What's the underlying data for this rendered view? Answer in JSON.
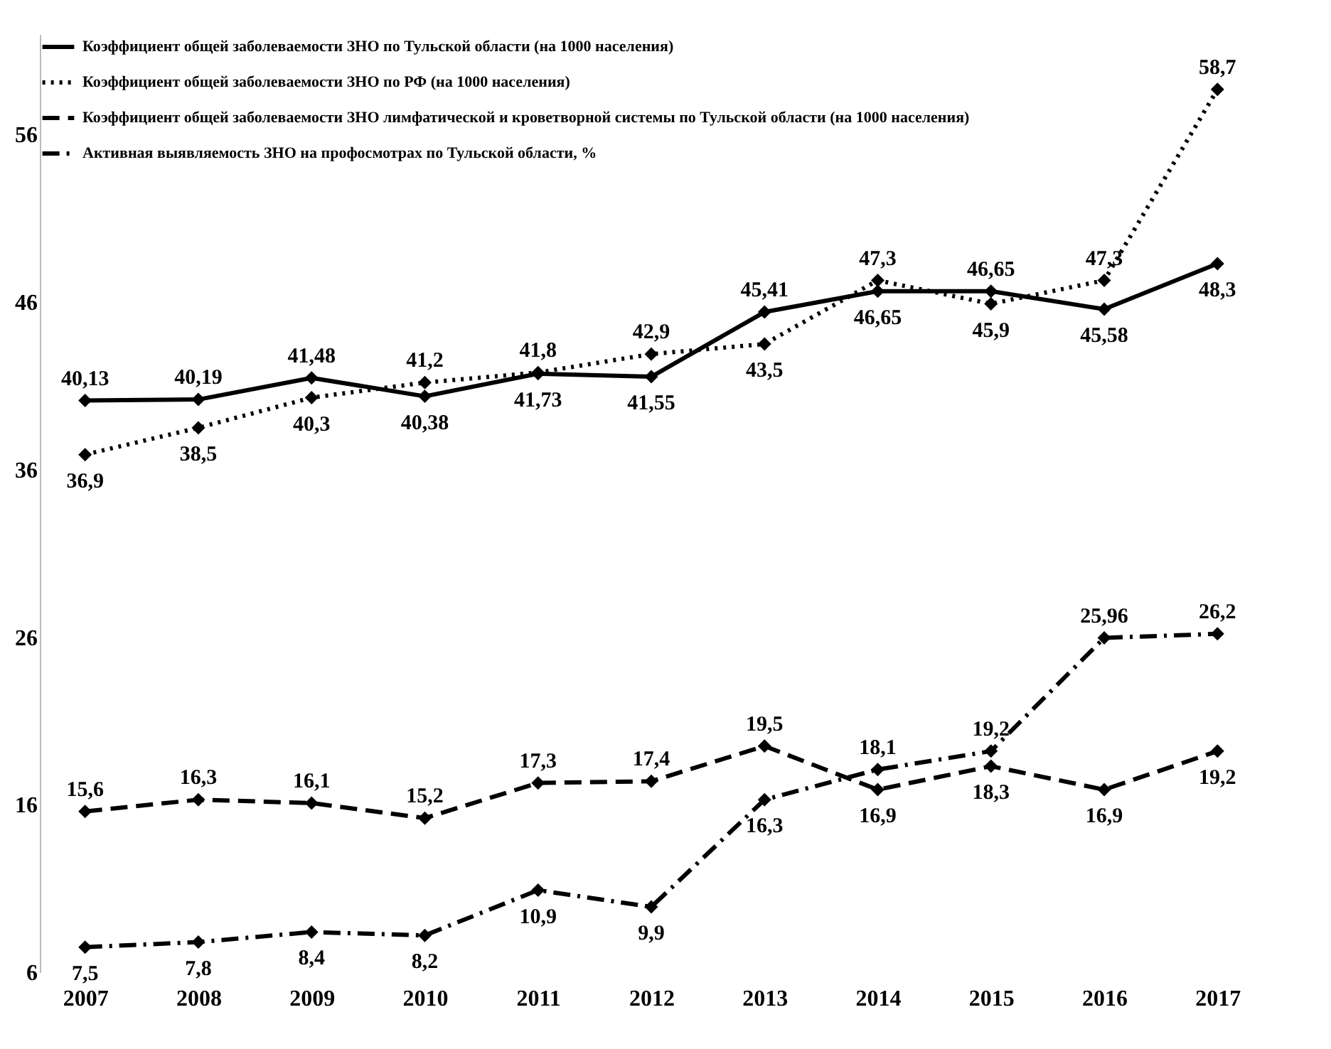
{
  "chart_data": {
    "type": "line",
    "categories": [
      "2007",
      "2008",
      "2009",
      "2010",
      "2011",
      "2012",
      "2013",
      "2014",
      "2015",
      "2016",
      "2017"
    ],
    "series": [
      {
        "name": "Коэффициент общей заболеваемости ЗНО по Тульской области (на 1000 населения)",
        "color": "#000000",
        "line_style": "solid",
        "values": [
          40.13,
          40.19,
          41.48,
          40.38,
          41.73,
          41.55,
          45.41,
          46.65,
          46.65,
          45.58,
          48.3
        ],
        "value_labels": [
          "40,13",
          "40,19",
          "41,48",
          "40,38",
          "41,73",
          "41,55",
          "45,41",
          "46,65",
          "46,65",
          "45,58",
          "48,3"
        ]
      },
      {
        "name": "Коэффициент общей заболеваемости ЗНО по РФ (на 1000 населения)",
        "color": "#000000",
        "line_style": "dotted",
        "values": [
          36.9,
          38.5,
          40.3,
          41.2,
          41.8,
          42.9,
          43.5,
          47.3,
          45.9,
          47.3,
          58.7
        ],
        "value_labels": [
          "36,9",
          "38,5",
          "40,3",
          "41,2",
          "41,8",
          "42,9",
          "43,5",
          "47,3",
          "45,9",
          "47,3",
          "58,7"
        ]
      },
      {
        "name": "Коэффициент общей заболеваемости ЗНО лимфатической и кроветворной системы по Тульской области (на 1000 населения)",
        "color": "#000000",
        "line_style": "dashed",
        "values": [
          15.6,
          16.3,
          16.1,
          15.2,
          17.3,
          17.4,
          19.5,
          16.9,
          18.3,
          16.9,
          19.2
        ],
        "value_labels": [
          "15,6",
          "16,3",
          "16,1",
          "15,2",
          "17,3",
          "17,4",
          "19,5",
          "16,9",
          "18,3",
          "16,9",
          "19,2"
        ]
      },
      {
        "name": "Активная выявляемость ЗНО на профосмотрах по Тульской области, %",
        "color": "#000000",
        "line_style": "dashdot",
        "values": [
          7.5,
          7.8,
          8.4,
          8.2,
          10.9,
          9.9,
          16.3,
          18.1,
          19.2,
          25.96,
          26.2
        ],
        "value_labels": [
          "7,5",
          "7,8",
          "8,4",
          "8,2",
          "10,9",
          "9,9",
          "16,3",
          "18,1",
          "19,2",
          "25,96",
          "26,2"
        ]
      }
    ],
    "ylim": [
      6,
      62
    ],
    "yticks": [
      6,
      16,
      26,
      36,
      46,
      56
    ],
    "grid": false,
    "legend": "top left",
    "marker": "diamond"
  }
}
